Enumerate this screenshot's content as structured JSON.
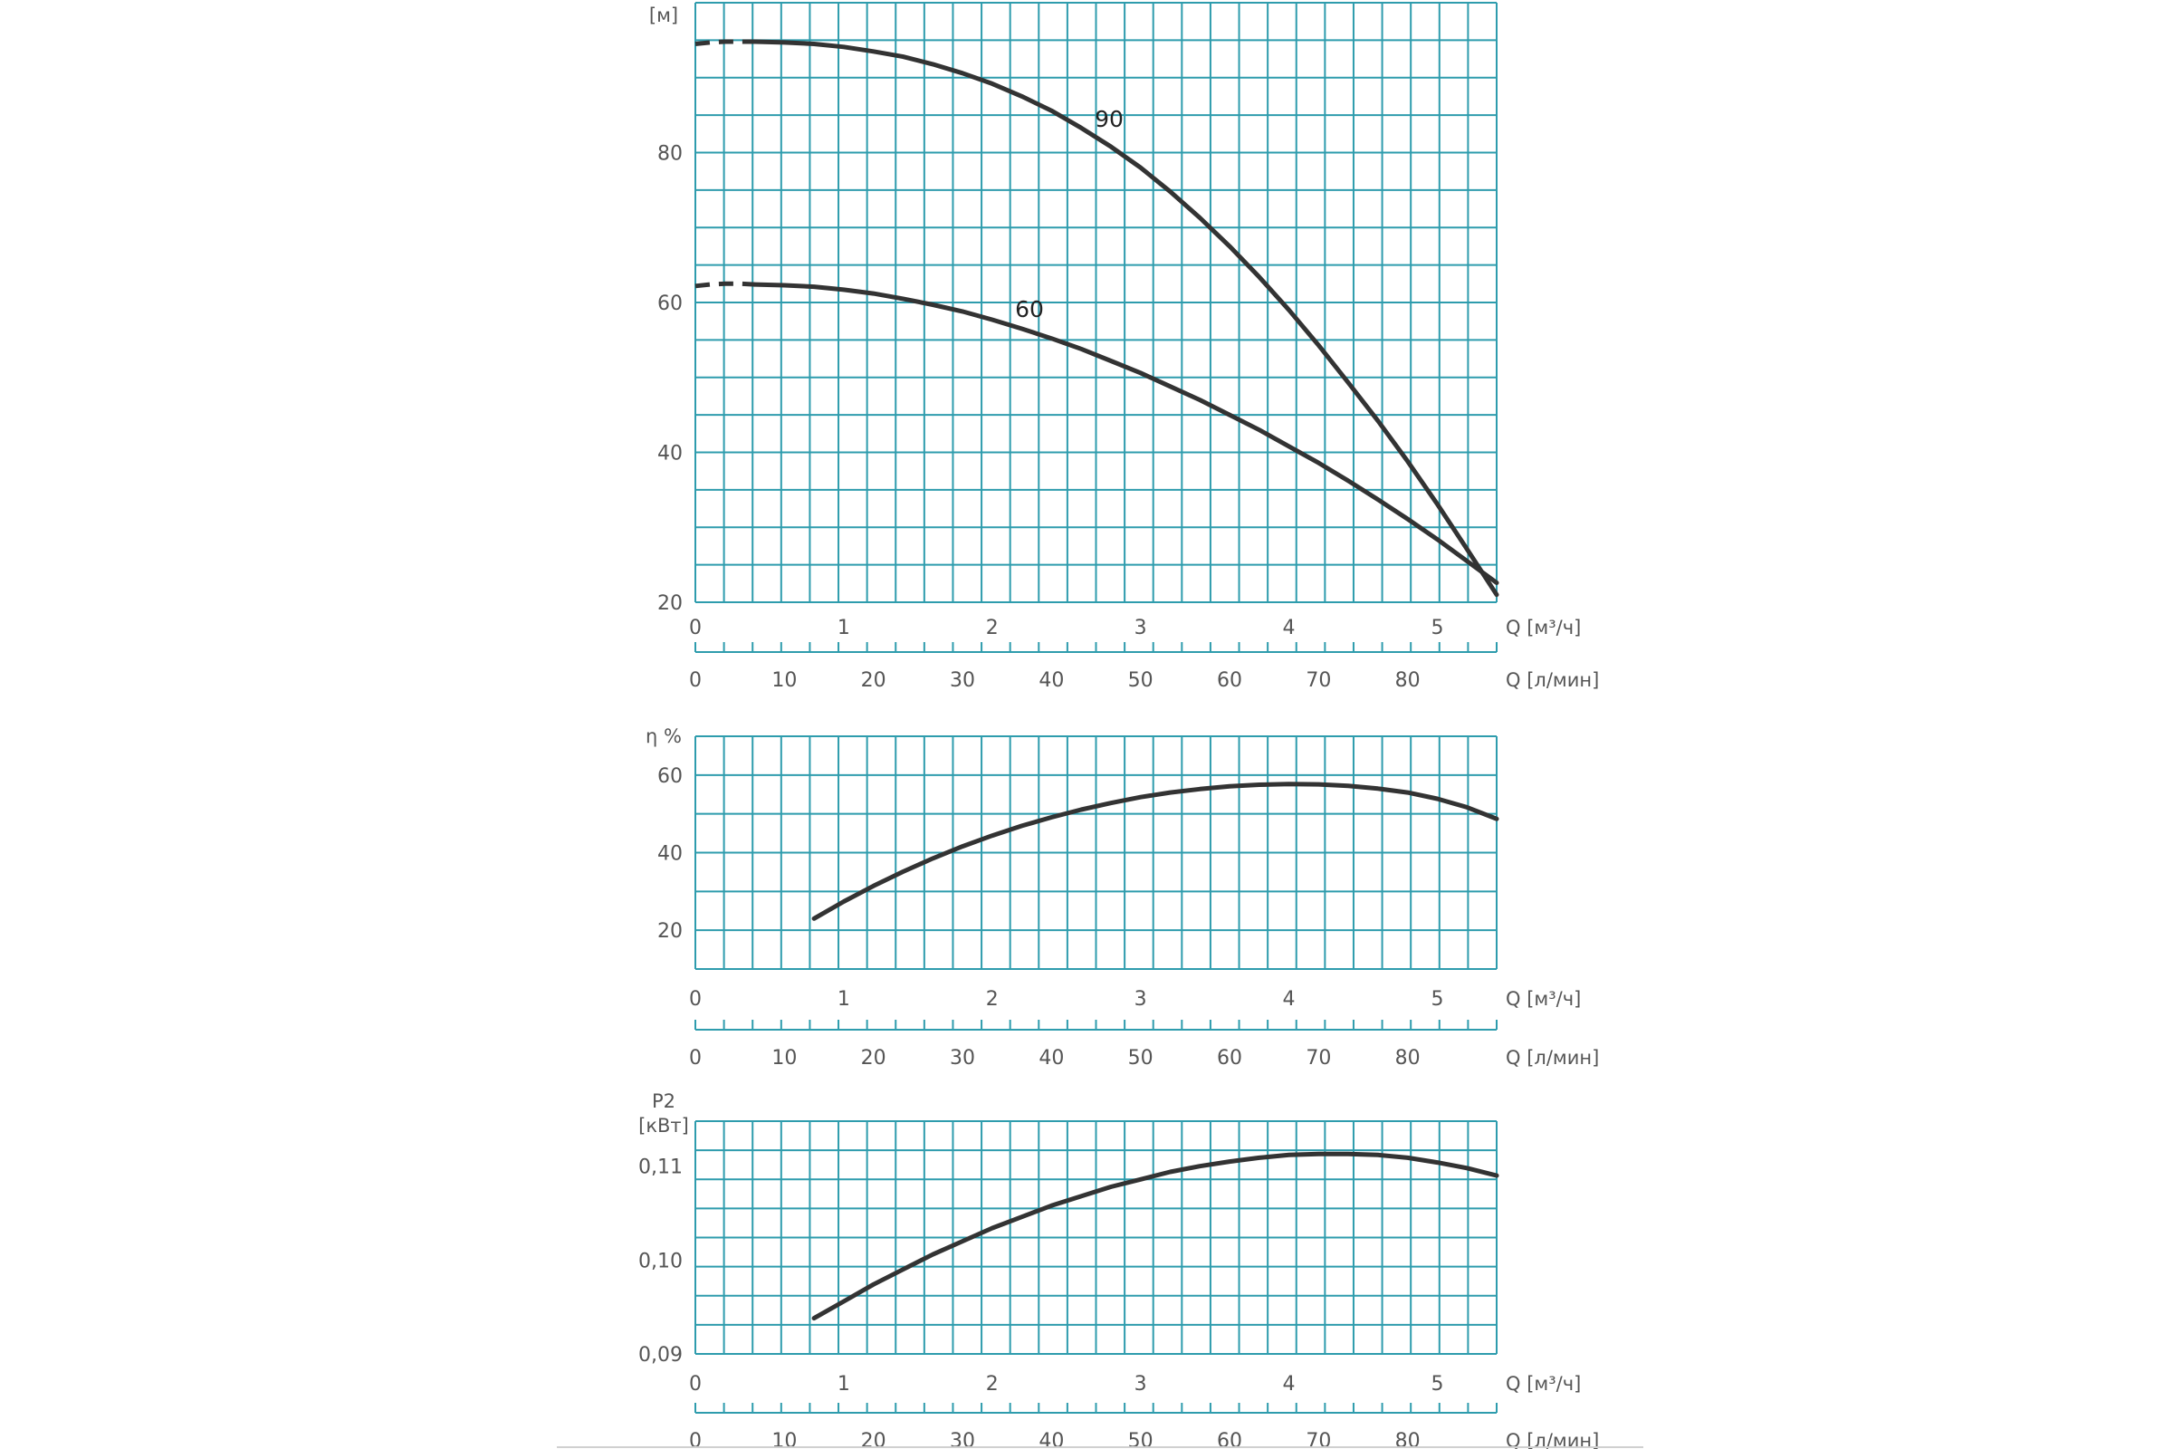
{
  "chart_data": [
    {
      "type": "line",
      "ylabel": "[м]",
      "ylim": [
        20,
        100
      ],
      "yticks": [
        20,
        40,
        60,
        80
      ],
      "xlim": [
        0,
        5.4
      ],
      "xticks_m3h": [
        0,
        1,
        2,
        3,
        4,
        5
      ],
      "xlabel_m3h": "Q [м³/ч]",
      "xticks_lmin": [
        0,
        10,
        20,
        30,
        40,
        50,
        60,
        70,
        80
      ],
      "xlabel_lmin": "Q [л/мин]",
      "grid": true,
      "series": [
        {
          "name": "90",
          "dashed_x": [
            0,
            0.1,
            0.2,
            0.3,
            0.4
          ],
          "dashed_y": [
            94.5,
            94.7,
            94.8,
            94.8,
            94.8
          ],
          "x": [
            0.4,
            0.6,
            0.8,
            1.0,
            1.2,
            1.4,
            1.6,
            1.8,
            2.0,
            2.2,
            2.4,
            2.6,
            2.8,
            3.0,
            3.2,
            3.4,
            3.6,
            3.8,
            4.0,
            4.2,
            4.4,
            4.6,
            4.8,
            5.0,
            5.2,
            5.4
          ],
          "y": [
            94.8,
            94.7,
            94.5,
            94.1,
            93.5,
            92.8,
            91.8,
            90.6,
            89.2,
            87.5,
            85.6,
            83.3,
            80.8,
            78.0,
            74.8,
            71.3,
            67.5,
            63.4,
            59.0,
            54.3,
            49.3,
            44.2,
            38.8,
            33.1,
            27.1,
            21.0
          ]
        },
        {
          "name": "60",
          "dashed_x": [
            0,
            0.1,
            0.2,
            0.3,
            0.4
          ],
          "dashed_y": [
            62.2,
            62.4,
            62.5,
            62.5,
            62.4
          ],
          "x": [
            0.4,
            0.6,
            0.8,
            1.0,
            1.2,
            1.4,
            1.6,
            1.8,
            2.0,
            2.2,
            2.4,
            2.6,
            2.8,
            3.0,
            3.2,
            3.4,
            3.6,
            3.8,
            4.0,
            4.2,
            4.4,
            4.6,
            4.8,
            5.0,
            5.2,
            5.4
          ],
          "y": [
            62.4,
            62.3,
            62.1,
            61.7,
            61.2,
            60.5,
            59.7,
            58.8,
            57.7,
            56.5,
            55.2,
            53.8,
            52.2,
            50.6,
            48.8,
            47.0,
            45.0,
            43.0,
            40.8,
            38.6,
            36.2,
            33.7,
            31.1,
            28.4,
            25.5,
            22.6
          ]
        }
      ]
    },
    {
      "type": "line",
      "ylabel": "η %",
      "ylim": [
        10,
        70
      ],
      "yticks": [
        20,
        40,
        60
      ],
      "xlim": [
        0,
        5.4
      ],
      "xticks_m3h": [
        0,
        1,
        2,
        3,
        4,
        5
      ],
      "xlabel_m3h": "Q [м³/ч]",
      "xticks_lmin": [
        0,
        10,
        20,
        30,
        40,
        50,
        60,
        70,
        80
      ],
      "xlabel_lmin": "Q [л/мин]",
      "grid": true,
      "series": [
        {
          "x": [
            0.8,
            1.0,
            1.2,
            1.4,
            1.6,
            1.8,
            2.0,
            2.2,
            2.4,
            2.6,
            2.8,
            3.0,
            3.2,
            3.4,
            3.6,
            3.8,
            4.0,
            4.2,
            4.4,
            4.6,
            4.8,
            5.0,
            5.2,
            5.4
          ],
          "y": [
            23.0,
            27.4,
            31.4,
            35.1,
            38.5,
            41.6,
            44.4,
            46.9,
            49.1,
            51.1,
            52.8,
            54.3,
            55.5,
            56.4,
            57.1,
            57.5,
            57.7,
            57.6,
            57.2,
            56.5,
            55.5,
            53.9,
            51.7,
            48.7
          ]
        }
      ]
    },
    {
      "type": "line",
      "ylabel": "P2 [кВт]",
      "ylim": [
        0.09,
        0.1148
      ],
      "yticks": [
        0.09,
        0.1,
        0.11
      ],
      "ytick_labels": [
        "0,09",
        "0,10",
        "0,11"
      ],
      "xlim": [
        0,
        5.4
      ],
      "xticks_m3h": [
        0,
        1,
        2,
        3,
        4,
        5
      ],
      "xlabel_m3h": "Q [м³/ч]",
      "xticks_lmin": [
        0,
        10,
        20,
        30,
        40,
        50,
        60,
        70,
        80
      ],
      "xlabel_lmin": "Q [л/мин]",
      "grid": true,
      "series": [
        {
          "x": [
            0.8,
            1.0,
            1.2,
            1.4,
            1.6,
            1.8,
            2.0,
            2.2,
            2.4,
            2.6,
            2.8,
            3.0,
            3.2,
            3.4,
            3.6,
            3.8,
            4.0,
            4.2,
            4.4,
            4.6,
            4.8,
            5.0,
            5.2,
            5.4
          ],
          "y": [
            0.0938,
            0.0956,
            0.0974,
            0.099,
            0.1006,
            0.102,
            0.1034,
            0.1046,
            0.1058,
            0.1068,
            0.1078,
            0.1086,
            0.1094,
            0.11,
            0.1105,
            0.1109,
            0.1112,
            0.1113,
            0.1113,
            0.1112,
            0.1109,
            0.1104,
            0.1098,
            0.109
          ]
        }
      ]
    }
  ]
}
